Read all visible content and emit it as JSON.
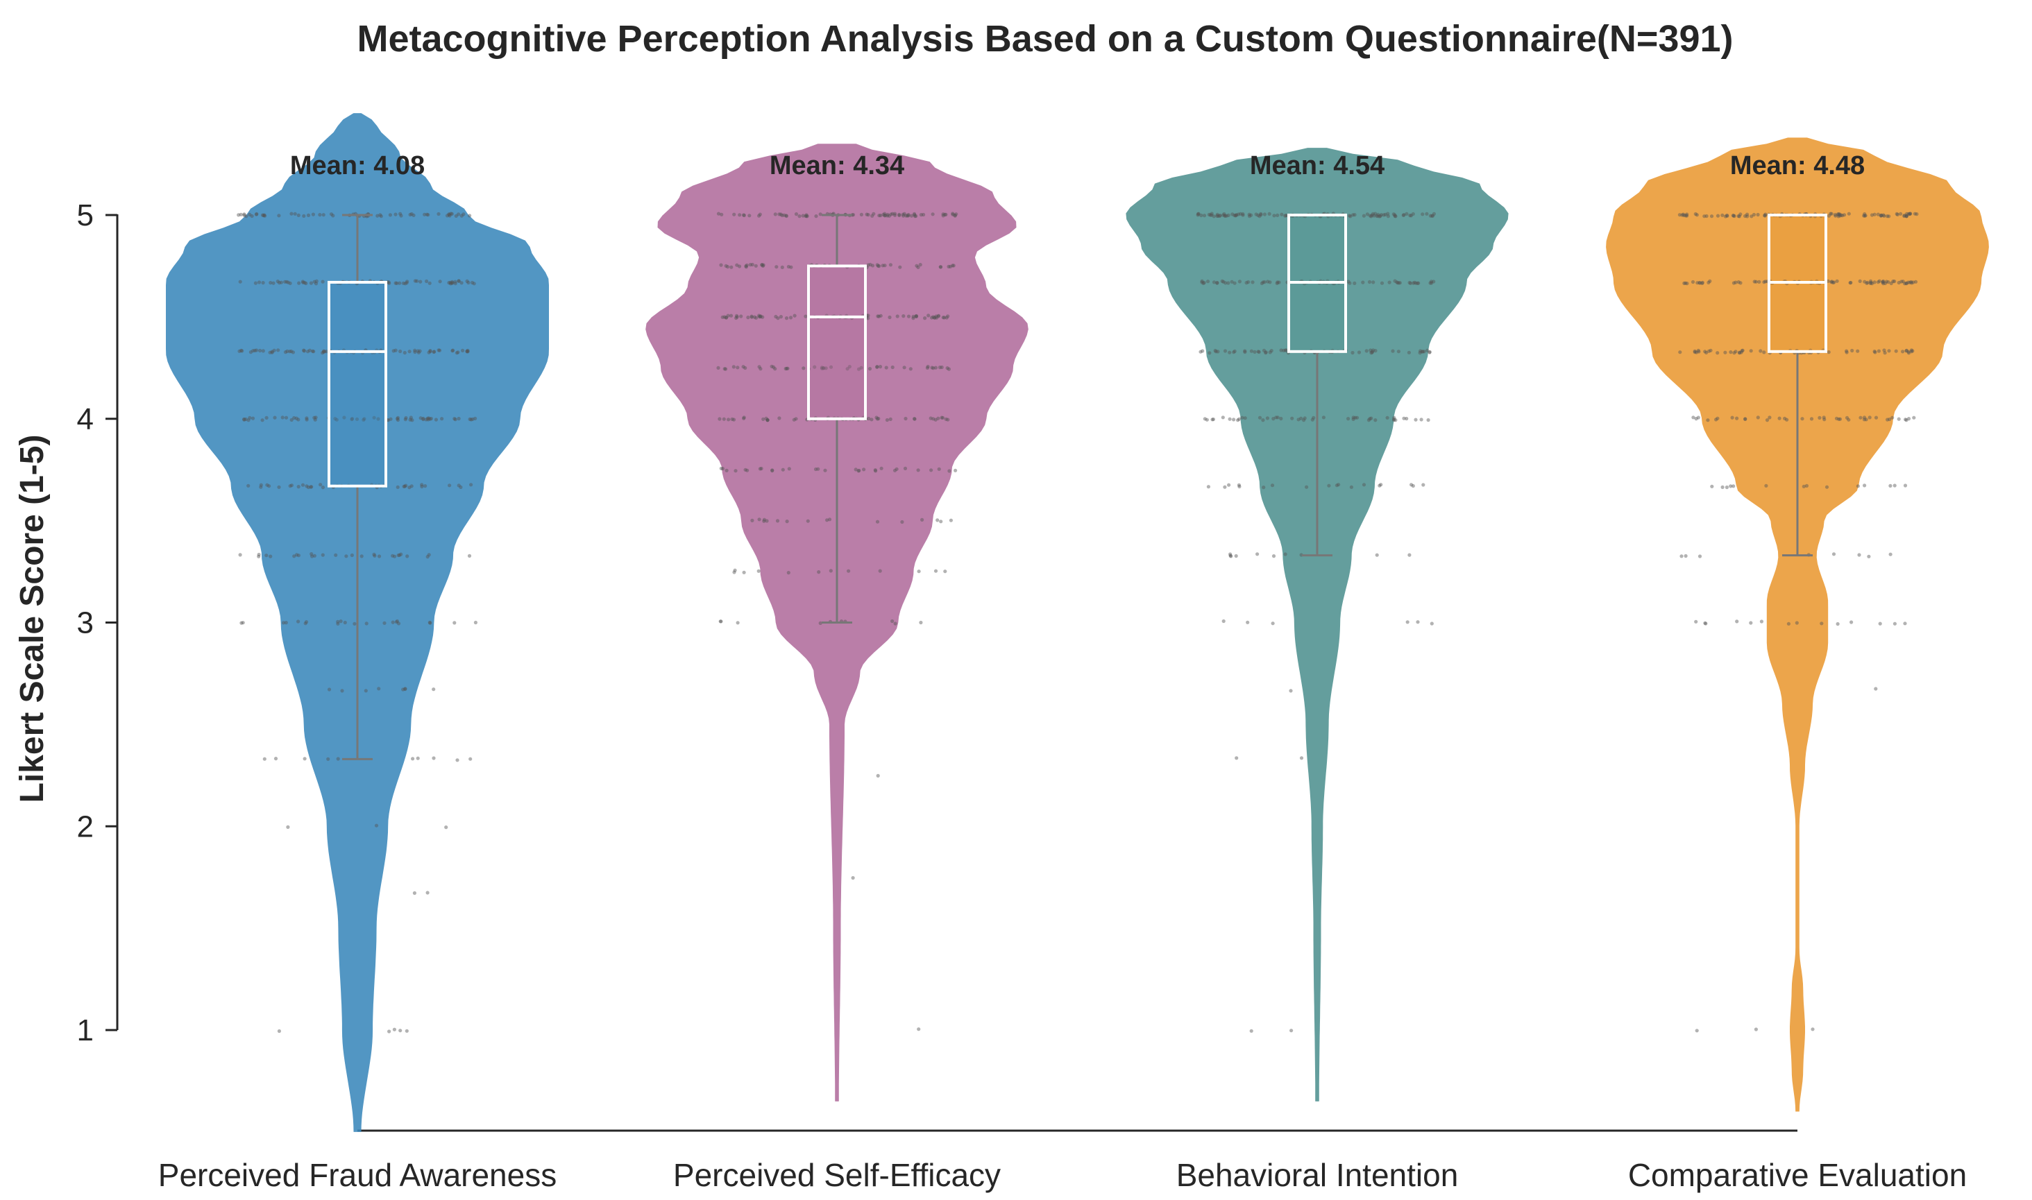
{
  "chart_data": {
    "type": "violin",
    "title": "Metacognitive Perception Analysis Based on a Custom Questionnaire(N=391)",
    "xlabel": "",
    "ylabel": "Likert Scale Score (1-5)",
    "ylim": [
      0.5,
      5.5
    ],
    "yticks": [
      "1",
      "2",
      "3",
      "4",
      "5"
    ],
    "grid": false,
    "categories": [
      "Perceived Fraud Awareness",
      "Perceived Self-Efficacy",
      "Behavioral Intention",
      "Comparative Evaluation"
    ],
    "series": [
      {
        "category": "Perceived Fraud Awareness",
        "color": "#3a88bb",
        "mean_label": "Mean: 4.08",
        "mean": 4.08,
        "box": {
          "min": 2.33,
          "q1": 3.67,
          "median": 4.33,
          "q3": 4.67,
          "max": 5.0
        },
        "range": [
          0.5,
          5.5
        ],
        "density": [
          [
            0.5,
            0.02
          ],
          [
            1.0,
            0.08
          ],
          [
            1.5,
            0.1
          ],
          [
            2.0,
            0.16
          ],
          [
            2.5,
            0.28
          ],
          [
            3.0,
            0.4
          ],
          [
            3.33,
            0.5
          ],
          [
            3.67,
            0.66
          ],
          [
            4.0,
            0.85
          ],
          [
            4.33,
            1.0
          ],
          [
            4.67,
            1.0
          ],
          [
            4.85,
            0.9
          ],
          [
            5.0,
            0.58
          ],
          [
            5.15,
            0.38
          ],
          [
            5.3,
            0.22
          ],
          [
            5.45,
            0.1
          ],
          [
            5.5,
            0.02
          ]
        ],
        "points": [
          {
            "score": 1.0,
            "n": 5
          },
          {
            "score": 1.67,
            "n": 2
          },
          {
            "score": 2.0,
            "n": 3
          },
          {
            "score": 2.33,
            "n": 10
          },
          {
            "score": 2.67,
            "n": 8
          },
          {
            "score": 3.0,
            "n": 22
          },
          {
            "score": 3.33,
            "n": 28
          },
          {
            "score": 3.67,
            "n": 40
          },
          {
            "score": 4.0,
            "n": 60
          },
          {
            "score": 4.33,
            "n": 75
          },
          {
            "score": 4.67,
            "n": 70
          },
          {
            "score": 5.0,
            "n": 60
          }
        ]
      },
      {
        "category": "Perceived Self-Efficacy",
        "color": "#b06c9c",
        "mean_label": "Mean: 4.34",
        "mean": 4.34,
        "box": {
          "min": 3.0,
          "q1": 4.0,
          "median": 4.5,
          "q3": 4.75,
          "max": 5.0
        },
        "range": [
          0.65,
          5.35
        ],
        "density": [
          [
            0.65,
            0.01
          ],
          [
            1.5,
            0.02
          ],
          [
            2.5,
            0.04
          ],
          [
            2.75,
            0.12
          ],
          [
            3.0,
            0.32
          ],
          [
            3.25,
            0.4
          ],
          [
            3.5,
            0.5
          ],
          [
            3.75,
            0.6
          ],
          [
            4.0,
            0.78
          ],
          [
            4.25,
            0.92
          ],
          [
            4.45,
            1.0
          ],
          [
            4.65,
            0.78
          ],
          [
            4.8,
            0.72
          ],
          [
            4.95,
            0.94
          ],
          [
            5.1,
            0.82
          ],
          [
            5.25,
            0.5
          ],
          [
            5.35,
            0.1
          ]
        ],
        "points": [
          {
            "score": 1.0,
            "n": 1
          },
          {
            "score": 1.75,
            "n": 1
          },
          {
            "score": 2.25,
            "n": 1
          },
          {
            "score": 3.0,
            "n": 10
          },
          {
            "score": 3.25,
            "n": 12
          },
          {
            "score": 3.5,
            "n": 16
          },
          {
            "score": 3.75,
            "n": 30
          },
          {
            "score": 4.0,
            "n": 55
          },
          {
            "score": 4.25,
            "n": 45
          },
          {
            "score": 4.5,
            "n": 70
          },
          {
            "score": 4.75,
            "n": 50
          },
          {
            "score": 5.0,
            "n": 80
          }
        ]
      },
      {
        "category": "Behavioral Intention",
        "color": "#4e918f",
        "mean_label": "Mean: 4.54",
        "mean": 4.54,
        "box": {
          "min": 3.33,
          "q1": 4.33,
          "median": 4.67,
          "q3": 5.0,
          "max": 5.0
        },
        "range": [
          0.65,
          5.33
        ],
        "density": [
          [
            0.65,
            0.01
          ],
          [
            1.5,
            0.02
          ],
          [
            2.0,
            0.03
          ],
          [
            2.5,
            0.06
          ],
          [
            3.0,
            0.12
          ],
          [
            3.33,
            0.18
          ],
          [
            3.67,
            0.3
          ],
          [
            4.0,
            0.4
          ],
          [
            4.33,
            0.58
          ],
          [
            4.67,
            0.78
          ],
          [
            4.85,
            0.92
          ],
          [
            5.0,
            1.0
          ],
          [
            5.15,
            0.85
          ],
          [
            5.25,
            0.5
          ],
          [
            5.33,
            0.05
          ]
        ],
        "points": [
          {
            "score": 1.0,
            "n": 2
          },
          {
            "score": 2.33,
            "n": 2
          },
          {
            "score": 2.67,
            "n": 1
          },
          {
            "score": 3.0,
            "n": 6
          },
          {
            "score": 3.33,
            "n": 10
          },
          {
            "score": 3.67,
            "n": 18
          },
          {
            "score": 4.0,
            "n": 45
          },
          {
            "score": 4.33,
            "n": 60
          },
          {
            "score": 4.67,
            "n": 70
          },
          {
            "score": 5.0,
            "n": 110
          }
        ]
      },
      {
        "category": "Comparative Evaluation",
        "color": "#e99832",
        "mean_label": "Mean: 4.48",
        "mean": 4.48,
        "box": {
          "min": 3.33,
          "q1": 4.33,
          "median": 4.67,
          "q3": 5.0,
          "max": 5.0
        },
        "range": [
          0.6,
          5.38
        ],
        "density": [
          [
            0.6,
            0.01
          ],
          [
            0.8,
            0.03
          ],
          [
            1.0,
            0.04
          ],
          [
            1.2,
            0.03
          ],
          [
            1.4,
            0.01
          ],
          [
            2.0,
            0.01
          ],
          [
            2.3,
            0.04
          ],
          [
            2.6,
            0.08
          ],
          [
            2.9,
            0.16
          ],
          [
            3.1,
            0.16
          ],
          [
            3.33,
            0.1
          ],
          [
            3.5,
            0.14
          ],
          [
            3.67,
            0.32
          ],
          [
            4.0,
            0.5
          ],
          [
            4.33,
            0.76
          ],
          [
            4.67,
            0.96
          ],
          [
            4.85,
            1.0
          ],
          [
            5.0,
            0.96
          ],
          [
            5.15,
            0.8
          ],
          [
            5.3,
            0.4
          ],
          [
            5.38,
            0.05
          ]
        ],
        "points": [
          {
            "score": 1.0,
            "n": 3
          },
          {
            "score": 2.67,
            "n": 1
          },
          {
            "score": 3.0,
            "n": 14
          },
          {
            "score": 3.33,
            "n": 8
          },
          {
            "score": 3.67,
            "n": 14
          },
          {
            "score": 4.0,
            "n": 40
          },
          {
            "score": 4.33,
            "n": 60
          },
          {
            "score": 4.67,
            "n": 80
          },
          {
            "score": 5.0,
            "n": 100
          }
        ]
      }
    ]
  }
}
